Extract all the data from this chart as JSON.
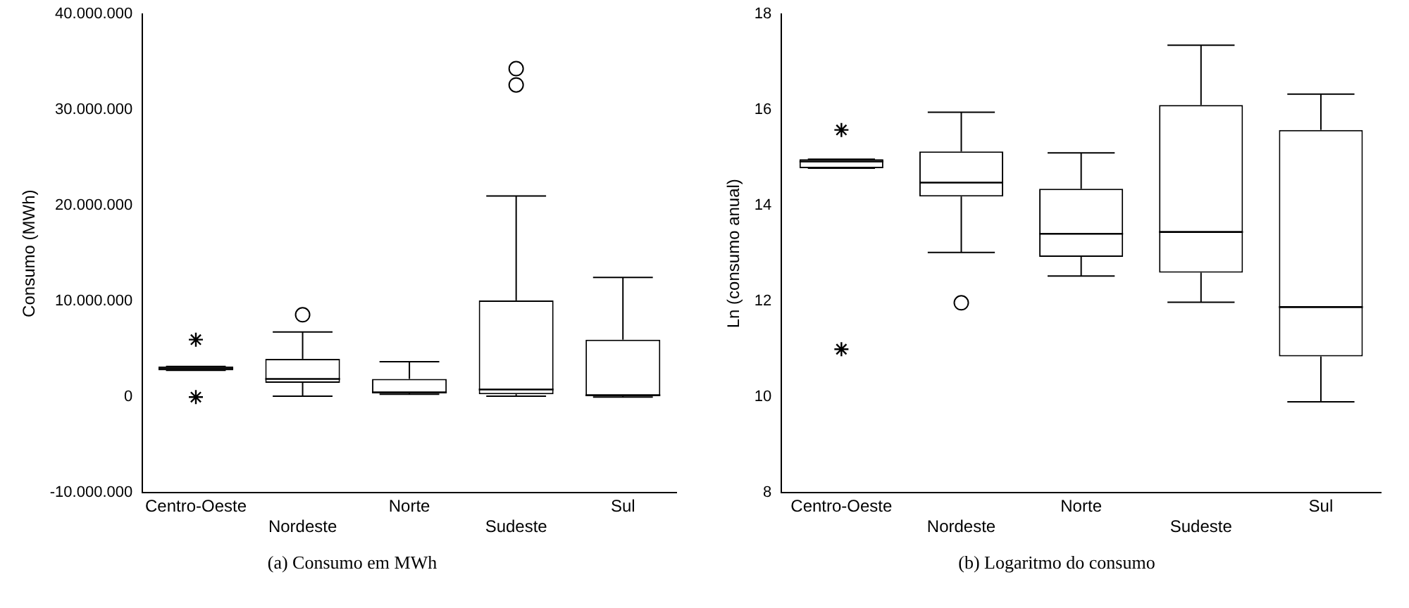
{
  "chart_data": [
    {
      "type": "box",
      "ylabel": "Consumo (MWh)",
      "categories": [
        "Centro-Oeste",
        "Nordeste",
        "Norte",
        "Sudeste",
        "Sul"
      ],
      "ylim": [
        -10000000,
        40000000
      ],
      "yticks": [
        {
          "value": -10000000,
          "label": "-10.000.000"
        },
        {
          "value": 0,
          "label": "0"
        },
        {
          "value": 10000000,
          "label": "10.000.000"
        },
        {
          "value": 20000000,
          "label": "20.000.000"
        },
        {
          "value": 30000000,
          "label": "30.000.000"
        },
        {
          "value": 40000000,
          "label": "40.000.000"
        }
      ],
      "grid": false,
      "legend": false,
      "series": [
        {
          "color": "#000000",
          "marker": "circle",
          "boxes": [
            {
              "low": 2800000,
              "q1": 2800000,
              "median": 3000000,
              "q3": 3200000,
              "high": 3200000
            },
            {
              "low": 100000,
              "q1": 1500000,
              "median": 1900000,
              "q3": 4000000,
              "high": 6800000,
              "outliers": [
                8600000
              ]
            },
            {
              "low": 300000,
              "q1": 400000,
              "median": 500000,
              "q3": 1900000,
              "high": 3700000
            },
            {
              "low": 100000,
              "q1": 300000,
              "median": 800000,
              "q3": 10100000,
              "high": 21000000,
              "outliers": [
                34300000,
                32600000
              ]
            },
            {
              "low": 0,
              "q1": 100000,
              "median": 200000,
              "q3": 6000000,
              "high": 12500000
            }
          ]
        },
        {
          "type": "scatter",
          "color": "#000000",
          "marker": "cross",
          "x": [
            "Centro-Oeste",
            "Centro-Oeste"
          ],
          "values": [
            6000000,
            0
          ]
        }
      ],
      "annotations": [
        "(a) Consumo em MWh"
      ]
    },
    {
      "type": "box",
      "ylabel": "Ln (consumo anual)",
      "categories": [
        "Centro-Oeste",
        "Nordeste",
        "Norte",
        "Sudeste",
        "Sul"
      ],
      "ylim": [
        8,
        18
      ],
      "yticks": [
        8,
        10,
        12,
        14,
        16,
        18
      ],
      "grid": false,
      "legend": false,
      "series": [
        {
          "color": "#000000",
          "marker": "circle",
          "boxes": [
            {
              "low": 14.78,
              "q1": 14.78,
              "median": 14.92,
              "q3": 14.97,
              "high": 14.97
            },
            {
              "low": 13.02,
              "q1": 14.19,
              "median": 14.48,
              "q3": 15.13,
              "high": 15.95,
              "outliers": [
                11.97
              ]
            },
            {
              "low": 12.53,
              "q1": 12.93,
              "median": 13.41,
              "q3": 14.35,
              "high": 15.1
            },
            {
              "low": 11.98,
              "q1": 12.6,
              "median": 13.45,
              "q3": 16.1,
              "high": 17.35
            },
            {
              "low": 9.9,
              "q1": 10.85,
              "median": 11.88,
              "q3": 15.58,
              "high": 16.33
            }
          ]
        },
        {
          "type": "scatter",
          "color": "#000000",
          "marker": "cross",
          "x": [
            "Centro-Oeste",
            "Centro-Oeste"
          ],
          "values": [
            15.58,
            11.0
          ]
        }
      ],
      "annotations": [
        "(b) Logaritmo do consumo"
      ]
    }
  ]
}
